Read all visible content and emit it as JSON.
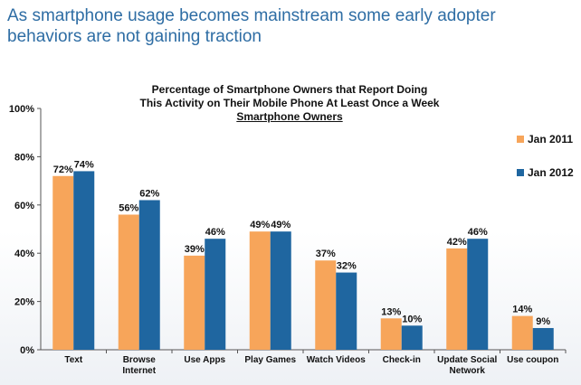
{
  "headline": "As smartphone usage becomes mainstream some early adopter behaviors are not gaining traction",
  "chart_data": {
    "type": "bar",
    "title_line1": "Percentage of Smartphone Owners that Report Doing",
    "title_line2": "This Activity on Their Mobile Phone At Least Once a Week",
    "subtitle": "Smartphone Owners",
    "categories": [
      "Text",
      "Browse Internet",
      "Use Apps",
      "Play Games",
      "Watch Videos",
      "Check-in",
      "Update Social Network",
      "Use coupon"
    ],
    "series": [
      {
        "name": "Jan 2011",
        "color": "#f7a55a",
        "values": [
          72,
          56,
          39,
          49,
          37,
          13,
          42,
          14
        ]
      },
      {
        "name": "Jan 2012",
        "color": "#1f66a0",
        "values": [
          74,
          62,
          46,
          49,
          32,
          10,
          46,
          9
        ]
      }
    ],
    "ylim": [
      0,
      100
    ],
    "yticks": [
      0,
      20,
      40,
      60,
      80,
      100
    ],
    "ytick_labels": [
      "0%",
      "20%",
      "40%",
      "60%",
      "80%",
      "100%"
    ],
    "value_suffix": "%",
    "legend_position": "right",
    "grid": false
  }
}
